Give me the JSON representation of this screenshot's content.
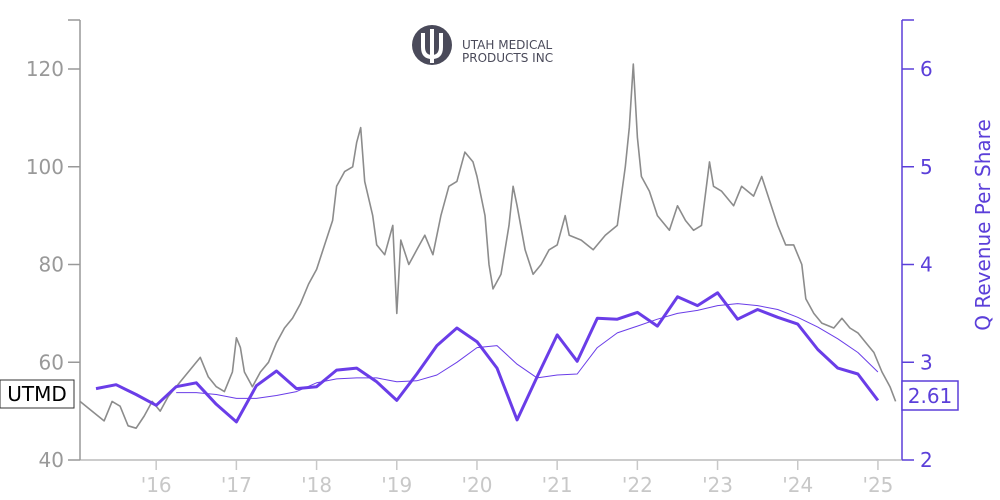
{
  "logo": {
    "line1": "UTAH MEDICAL",
    "line2": "PRODUCTS INC",
    "color": "#4a4a5a"
  },
  "colors": {
    "price": "#8c8c8c",
    "revenue": "#6a3de8",
    "revenue_trend": "#6a3de8",
    "right_axis": "#5b3fd9",
    "left_axis": "#999999",
    "x_ticks": "#c8c8c8"
  },
  "chart_data": {
    "type": "line",
    "x_ticks": [
      "'16",
      "'17",
      "'18",
      "'19",
      "'20",
      "'21",
      "'22",
      "'23",
      "'24",
      "'25"
    ],
    "x_range": [
      2015.05,
      2025.3
    ],
    "left_axis": {
      "range": [
        40,
        130
      ],
      "ticks": [
        40,
        60,
        80,
        100,
        120
      ]
    },
    "right_axis": {
      "label": "Q Revenue Per Share",
      "range": [
        2,
        6.5
      ],
      "ticks": [
        2,
        3,
        4,
        5,
        6
      ]
    },
    "ticker_label": "UTMD",
    "last_value_label": "2.61",
    "series": [
      {
        "axis": "left",
        "style": "price",
        "points": [
          [
            2015.05,
            52
          ],
          [
            2015.2,
            50
          ],
          [
            2015.35,
            48
          ],
          [
            2015.45,
            52
          ],
          [
            2015.55,
            51
          ],
          [
            2015.65,
            47
          ],
          [
            2015.75,
            46.5
          ],
          [
            2015.85,
            49
          ],
          [
            2015.95,
            52
          ],
          [
            2016.05,
            50
          ],
          [
            2016.15,
            53
          ],
          [
            2016.25,
            55
          ],
          [
            2016.35,
            57
          ],
          [
            2016.45,
            59
          ],
          [
            2016.55,
            61
          ],
          [
            2016.65,
            57
          ],
          [
            2016.75,
            55
          ],
          [
            2016.85,
            54
          ],
          [
            2016.95,
            58
          ],
          [
            2017.0,
            65
          ],
          [
            2017.05,
            63
          ],
          [
            2017.1,
            58
          ],
          [
            2017.2,
            55
          ],
          [
            2017.3,
            58
          ],
          [
            2017.4,
            60
          ],
          [
            2017.5,
            64
          ],
          [
            2017.6,
            67
          ],
          [
            2017.7,
            69
          ],
          [
            2017.8,
            72
          ],
          [
            2017.9,
            76
          ],
          [
            2018.0,
            79
          ],
          [
            2018.1,
            84
          ],
          [
            2018.2,
            89
          ],
          [
            2018.25,
            96
          ],
          [
            2018.35,
            99
          ],
          [
            2018.45,
            100
          ],
          [
            2018.5,
            105
          ],
          [
            2018.55,
            108
          ],
          [
            2018.6,
            97
          ],
          [
            2018.7,
            90
          ],
          [
            2018.75,
            84
          ],
          [
            2018.85,
            82
          ],
          [
            2018.95,
            88
          ],
          [
            2019.0,
            70
          ],
          [
            2019.05,
            85
          ],
          [
            2019.15,
            80
          ],
          [
            2019.25,
            83
          ],
          [
            2019.35,
            86
          ],
          [
            2019.45,
            82
          ],
          [
            2019.55,
            90
          ],
          [
            2019.65,
            96
          ],
          [
            2019.75,
            97
          ],
          [
            2019.85,
            103
          ],
          [
            2019.95,
            101
          ],
          [
            2020.0,
            98
          ],
          [
            2020.1,
            90
          ],
          [
            2020.15,
            80
          ],
          [
            2020.2,
            75
          ],
          [
            2020.3,
            78
          ],
          [
            2020.4,
            88
          ],
          [
            2020.45,
            96
          ],
          [
            2020.5,
            92
          ],
          [
            2020.6,
            83
          ],
          [
            2020.7,
            78
          ],
          [
            2020.8,
            80
          ],
          [
            2020.9,
            83
          ],
          [
            2021.0,
            84
          ],
          [
            2021.1,
            90
          ],
          [
            2021.15,
            86
          ],
          [
            2021.3,
            85
          ],
          [
            2021.45,
            83
          ],
          [
            2021.6,
            86
          ],
          [
            2021.75,
            88
          ],
          [
            2021.85,
            100
          ],
          [
            2021.9,
            108
          ],
          [
            2021.95,
            121
          ],
          [
            2022.0,
            106
          ],
          [
            2022.05,
            98
          ],
          [
            2022.15,
            95
          ],
          [
            2022.25,
            90
          ],
          [
            2022.4,
            87
          ],
          [
            2022.5,
            92
          ],
          [
            2022.6,
            89
          ],
          [
            2022.7,
            87
          ],
          [
            2022.8,
            88
          ],
          [
            2022.9,
            101
          ],
          [
            2022.95,
            96
          ],
          [
            2023.05,
            95
          ],
          [
            2023.2,
            92
          ],
          [
            2023.3,
            96
          ],
          [
            2023.45,
            94
          ],
          [
            2023.55,
            98
          ],
          [
            2023.65,
            93
          ],
          [
            2023.75,
            88
          ],
          [
            2023.85,
            84
          ],
          [
            2023.95,
            84
          ],
          [
            2024.05,
            80
          ],
          [
            2024.1,
            73
          ],
          [
            2024.2,
            70
          ],
          [
            2024.3,
            68
          ],
          [
            2024.45,
            67
          ],
          [
            2024.55,
            69
          ],
          [
            2024.65,
            67
          ],
          [
            2024.75,
            66
          ],
          [
            2024.85,
            64
          ],
          [
            2024.95,
            62
          ],
          [
            2025.05,
            58
          ],
          [
            2025.15,
            55
          ],
          [
            2025.22,
            52
          ]
        ]
      },
      {
        "axis": "right",
        "style": "revenue",
        "points": [
          [
            2015.25,
            2.73
          ],
          [
            2015.5,
            2.77
          ],
          [
            2015.75,
            2.67
          ],
          [
            2016.0,
            2.56
          ],
          [
            2016.25,
            2.75
          ],
          [
            2016.5,
            2.79
          ],
          [
            2016.75,
            2.57
          ],
          [
            2017.0,
            2.39
          ],
          [
            2017.25,
            2.76
          ],
          [
            2017.5,
            2.91
          ],
          [
            2017.75,
            2.73
          ],
          [
            2018.0,
            2.75
          ],
          [
            2018.25,
            2.92
          ],
          [
            2018.5,
            2.94
          ],
          [
            2018.75,
            2.8
          ],
          [
            2019.0,
            2.61
          ],
          [
            2019.25,
            2.88
          ],
          [
            2019.5,
            3.17
          ],
          [
            2019.75,
            3.35
          ],
          [
            2020.0,
            3.21
          ],
          [
            2020.25,
            2.94
          ],
          [
            2020.5,
            2.41
          ],
          [
            2020.75,
            2.85
          ],
          [
            2021.0,
            3.28
          ],
          [
            2021.25,
            3.01
          ],
          [
            2021.5,
            3.45
          ],
          [
            2021.75,
            3.44
          ],
          [
            2022.0,
            3.51
          ],
          [
            2022.25,
            3.37
          ],
          [
            2022.5,
            3.67
          ],
          [
            2022.75,
            3.58
          ],
          [
            2023.0,
            3.71
          ],
          [
            2023.25,
            3.44
          ],
          [
            2023.5,
            3.54
          ],
          [
            2023.75,
            3.46
          ],
          [
            2024.0,
            3.39
          ],
          [
            2024.25,
            3.13
          ],
          [
            2024.5,
            2.94
          ],
          [
            2024.75,
            2.88
          ],
          [
            2025.0,
            2.61
          ]
        ]
      },
      {
        "axis": "right",
        "style": "trend",
        "points": [
          [
            2016.25,
            2.69
          ],
          [
            2016.5,
            2.69
          ],
          [
            2016.75,
            2.67
          ],
          [
            2017.0,
            2.63
          ],
          [
            2017.25,
            2.63
          ],
          [
            2017.5,
            2.66
          ],
          [
            2017.75,
            2.7
          ],
          [
            2018.0,
            2.79
          ],
          [
            2018.25,
            2.83
          ],
          [
            2018.5,
            2.84
          ],
          [
            2018.75,
            2.84
          ],
          [
            2019.0,
            2.8
          ],
          [
            2019.25,
            2.81
          ],
          [
            2019.5,
            2.87
          ],
          [
            2019.75,
            3.0
          ],
          [
            2020.0,
            3.15
          ],
          [
            2020.25,
            3.17
          ],
          [
            2020.5,
            2.98
          ],
          [
            2020.75,
            2.84
          ],
          [
            2021.0,
            2.87
          ],
          [
            2021.25,
            2.88
          ],
          [
            2021.5,
            3.15
          ],
          [
            2021.75,
            3.3
          ],
          [
            2022.0,
            3.37
          ],
          [
            2022.25,
            3.44
          ],
          [
            2022.5,
            3.5
          ],
          [
            2022.75,
            3.53
          ],
          [
            2023.0,
            3.58
          ],
          [
            2023.25,
            3.6
          ],
          [
            2023.5,
            3.58
          ],
          [
            2023.75,
            3.54
          ],
          [
            2024.0,
            3.46
          ],
          [
            2024.25,
            3.36
          ],
          [
            2024.5,
            3.24
          ],
          [
            2024.75,
            3.1
          ],
          [
            2025.0,
            2.9
          ]
        ]
      }
    ]
  }
}
